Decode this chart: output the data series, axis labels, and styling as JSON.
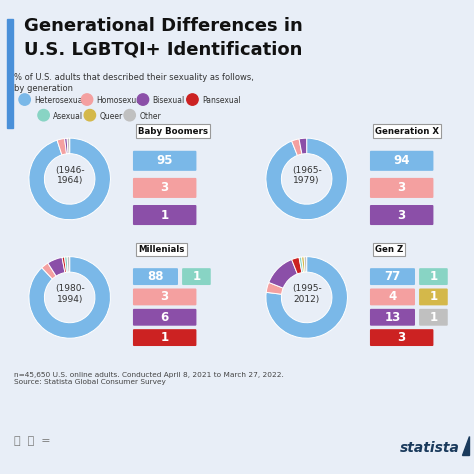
{
  "title_line1": "Generational Differences in",
  "title_line2": "U.S. LGBTQI+ Identification",
  "subtitle": "% of U.S. adults that described their sexuality as follows,\nby generation",
  "footnote": "n=45,650 U.S. online adults. Conducted April 8, 2021 to March 27, 2022.\nSource: Statista Global Consumer Survey",
  "bg_color": "#e8eef7",
  "panel_color": "#d5e0f0",
  "colors": {
    "Heterosexual": "#7ab8e8",
    "Homosexual": "#f4a0a0",
    "Bisexual": "#8b4fa8",
    "Pansexual": "#cc2222",
    "Asexual": "#88d4c4",
    "Queer": "#d4b84a",
    "Other": "#c0c0c0"
  },
  "generations": [
    {
      "name": "Baby Boomers",
      "years": "(1946-\n1964)",
      "data_order": [
        "Heterosexual",
        "Homosexual",
        "Bisexual",
        "Pansexual",
        "Asexual",
        "Queer",
        "Other"
      ],
      "data_vals": [
        95,
        3,
        1,
        0,
        0,
        0,
        1
      ],
      "value_rows": [
        [
          [
            "Heterosexual",
            95
          ]
        ],
        [
          [
            "Homosexual",
            3
          ]
        ],
        [
          [
            "Bisexual",
            1
          ]
        ]
      ]
    },
    {
      "name": "Generation X",
      "years": "(1965-\n1979)",
      "data_order": [
        "Heterosexual",
        "Homosexual",
        "Bisexual",
        "Pansexual",
        "Asexual",
        "Queer",
        "Other"
      ],
      "data_vals": [
        94,
        3,
        3,
        0,
        0,
        0,
        0
      ],
      "value_rows": [
        [
          [
            "Heterosexual",
            94
          ]
        ],
        [
          [
            "Homosexual",
            3
          ]
        ],
        [
          [
            "Bisexual",
            3
          ]
        ]
      ]
    },
    {
      "name": "Millenials",
      "years": "(1980-\n1994)",
      "data_order": [
        "Heterosexual",
        "Homosexual",
        "Bisexual",
        "Pansexual",
        "Asexual",
        "Queer",
        "Other"
      ],
      "data_vals": [
        88,
        3,
        6,
        1,
        1,
        0,
        1
      ],
      "value_rows": [
        [
          [
            "Heterosexual",
            88
          ],
          [
            "Asexual",
            1
          ]
        ],
        [
          [
            "Homosexual",
            3
          ]
        ],
        [
          [
            "Bisexual",
            6
          ]
        ],
        [
          [
            "Pansexual",
            1
          ]
        ]
      ]
    },
    {
      "name": "Gen Z",
      "years": "(1995-\n2012)",
      "data_order": [
        "Heterosexual",
        "Homosexual",
        "Bisexual",
        "Pansexual",
        "Asexual",
        "Queer",
        "Other"
      ],
      "data_vals": [
        77,
        4,
        13,
        3,
        1,
        1,
        1
      ],
      "value_rows": [
        [
          [
            "Heterosexual",
            77
          ],
          [
            "Asexual",
            1
          ]
        ],
        [
          [
            "Homosexual",
            4
          ],
          [
            "Queer",
            1
          ]
        ],
        [
          [
            "Bisexual",
            13
          ],
          [
            "Other",
            1
          ]
        ],
        [
          [
            "Pansexual",
            3
          ]
        ]
      ]
    }
  ]
}
